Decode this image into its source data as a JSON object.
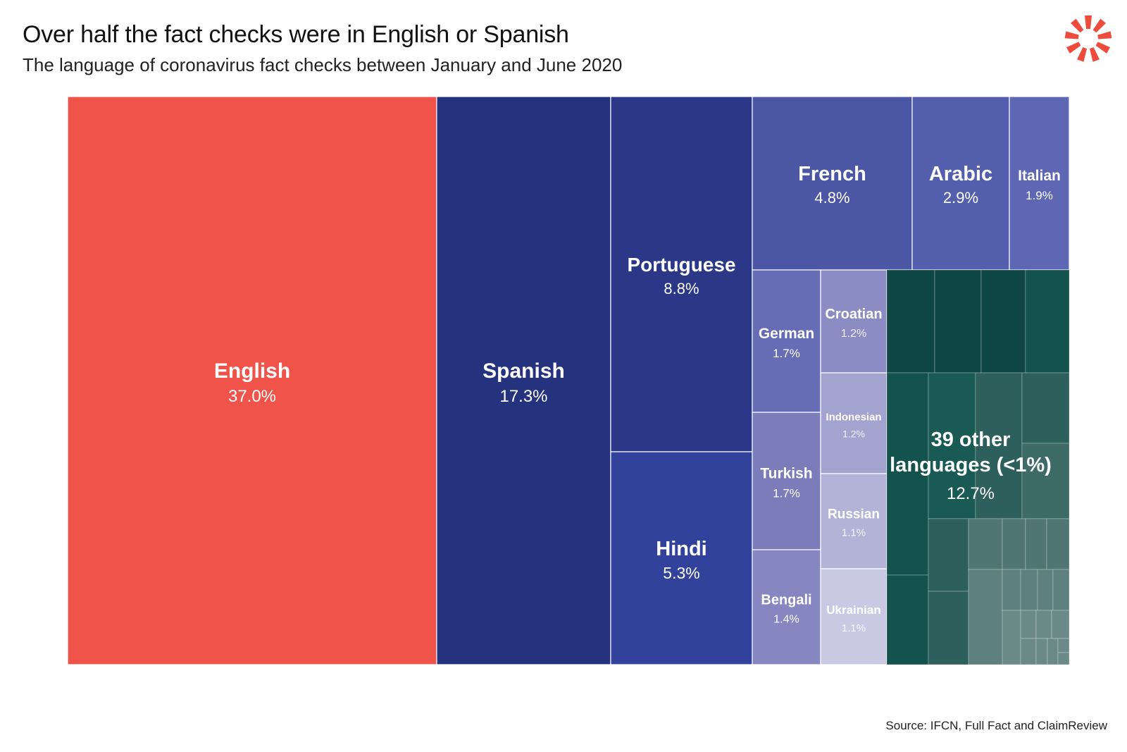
{
  "header": {
    "title": "Over half the fact checks were in English or Spanish",
    "subtitle": "The language of coronavirus fact checks between January and June 2020"
  },
  "footer": {
    "source": "Source: IFCN, Full Fact and ClaimReview"
  },
  "logo": {
    "icon": "asterisk-burst-logo-icon",
    "color": "#ee4b3c"
  },
  "chart_data": {
    "type": "treemap",
    "title": "Over half the fact checks were in English or Spanish",
    "subtitle": "The language of coronavirus fact checks between January and June 2020",
    "unit": "% of fact checks",
    "items": [
      {
        "label": "English",
        "pct": "37.0%",
        "value": 37.0,
        "color": "#ef534a"
      },
      {
        "label": "Spanish",
        "pct": "17.3%",
        "value": 17.3,
        "color": "#25337f"
      },
      {
        "label": "Portuguese",
        "pct": "8.8%",
        "value": 8.8,
        "color": "#2b3887"
      },
      {
        "label": "Hindi",
        "pct": "5.3%",
        "value": 5.3,
        "color": "#32429c"
      },
      {
        "label": "French",
        "pct": "4.8%",
        "value": 4.8,
        "color": "#4b56a4"
      },
      {
        "label": "Arabic",
        "pct": "2.9%",
        "value": 2.9,
        "color": "#535fad"
      },
      {
        "label": "Italian",
        "pct": "1.9%",
        "value": 1.9,
        "color": "#5d67b3"
      },
      {
        "label": "German",
        "pct": "1.7%",
        "value": 1.7,
        "color": "#676db4"
      },
      {
        "label": "Turkish",
        "pct": "1.7%",
        "value": 1.7,
        "color": "#7b7dbb"
      },
      {
        "label": "Bengali",
        "pct": "1.4%",
        "value": 1.4,
        "color": "#8687c0"
      },
      {
        "label": "Croatian",
        "pct": "1.2%",
        "value": 1.2,
        "color": "#8b8cc3"
      },
      {
        "label": "Indonesian",
        "pct": "1.2%",
        "value": 1.2,
        "color": "#a3a3d0"
      },
      {
        "label": "Russian",
        "pct": "1.1%",
        "value": 1.1,
        "color": "#b3b3d8"
      },
      {
        "label": "Ukrainian",
        "pct": "1.1%",
        "value": 1.1,
        "color": "#c9c9e3"
      }
    ],
    "other": {
      "label": "39 other languages (<1%)",
      "label_line1": "39 other",
      "label_line2": "languages (<1%)",
      "pct": "12.7%",
      "value": 12.7,
      "count": 39,
      "palette": [
        "#0e4743",
        "#13524d",
        "#1a5a55",
        "#2d5f5c",
        "#3e6a67",
        "#4f7673",
        "#5e807e",
        "#6b8987"
      ]
    }
  }
}
